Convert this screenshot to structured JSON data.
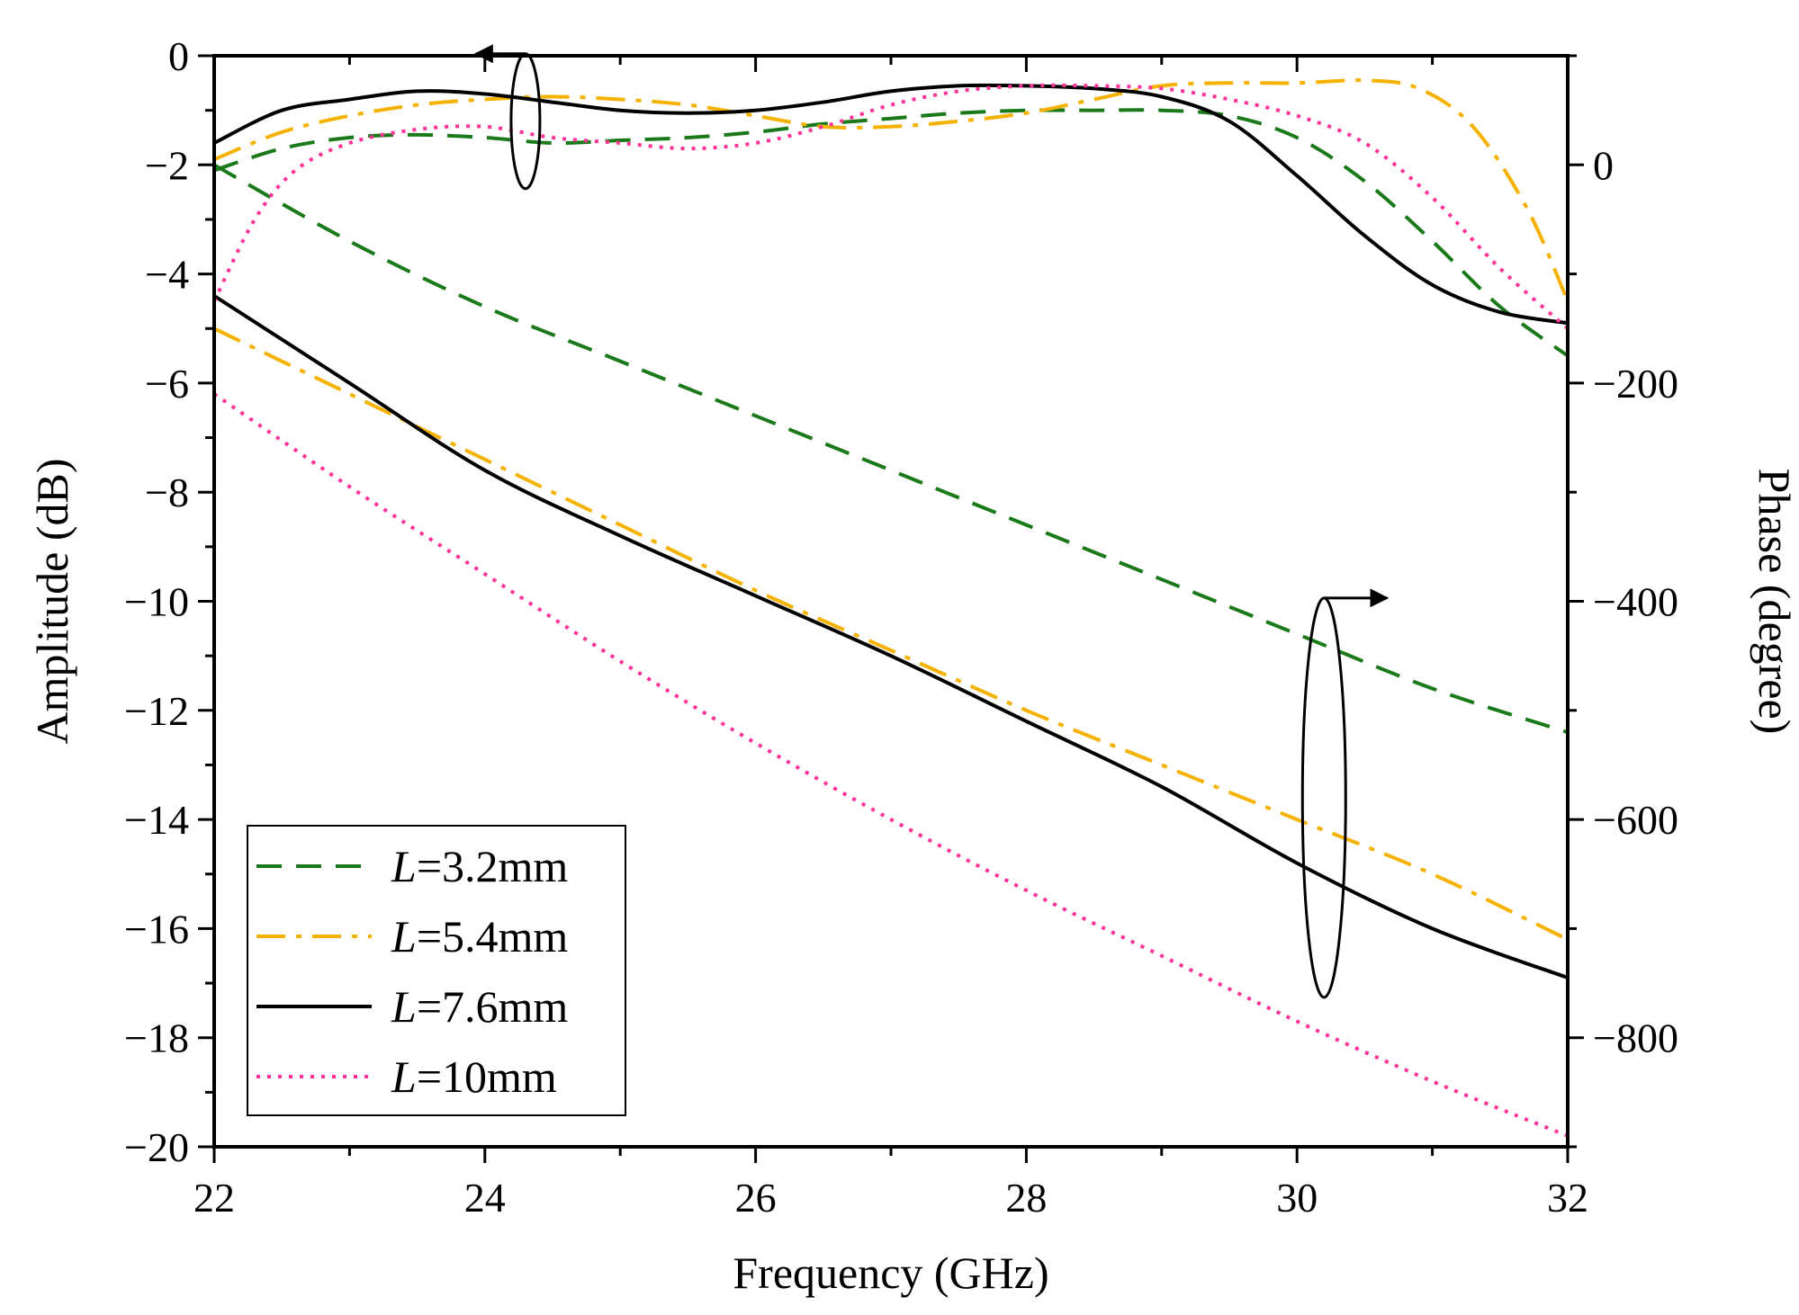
{
  "chart_data": {
    "type": "line",
    "title": "",
    "xlabel": "Frequency (GHz)",
    "ylabel_left": "Amplitude (dB)",
    "ylabel_right": "Phase (degree)",
    "xlim": [
      22,
      32
    ],
    "ylim_left": [
      -20,
      0
    ],
    "ylim_right": [
      -900,
      100
    ],
    "x_ticks": [
      "22",
      "24",
      "26",
      "28",
      "30",
      "32"
    ],
    "y_left_ticks": [
      "0",
      "−2",
      "−4",
      "−6",
      "−8",
      "−10",
      "−12",
      "−14",
      "−16",
      "−18",
      "−20"
    ],
    "y_right_ticks": [
      "0",
      "−200",
      "−400",
      "−600",
      "−800"
    ],
    "legend_placement": "bottom-left",
    "series": [
      {
        "name": "L=3.2mm",
        "legend_var": "L",
        "legend_value": "=3.2mm",
        "color": "#1a7a1a",
        "dash": "dashed",
        "amplitude": {
          "x": [
            22,
            22.5,
            23,
            23.5,
            24,
            24.5,
            25,
            25.5,
            26,
            26.5,
            27,
            27.5,
            28,
            28.5,
            29,
            29.5,
            30,
            30.5,
            31,
            31.5,
            32
          ],
          "y": [
            -2.1,
            -1.7,
            -1.5,
            -1.45,
            -1.5,
            -1.6,
            -1.55,
            -1.5,
            -1.4,
            -1.25,
            -1.15,
            -1.05,
            -1.0,
            -1.0,
            -1.0,
            -1.1,
            -1.5,
            -2.3,
            -3.4,
            -4.6,
            -5.5
          ]
        },
        "phase": {
          "x": [
            22,
            23,
            24,
            25,
            26,
            27,
            28,
            29,
            30,
            31,
            32
          ],
          "y": [
            0,
            -70,
            -130,
            -180,
            -230,
            -280,
            -330,
            -380,
            -430,
            -480,
            -520
          ]
        }
      },
      {
        "name": "L=5.4mm",
        "legend_var": "L",
        "legend_value": "=5.4mm",
        "color": "#f5b200",
        "dash": "dashdot",
        "amplitude": {
          "x": [
            22,
            22.5,
            23,
            23.5,
            24,
            24.5,
            25,
            25.5,
            26,
            26.5,
            27,
            27.5,
            28,
            28.5,
            29,
            29.5,
            30,
            30.5,
            30.9,
            31.3,
            31.7,
            32
          ],
          "y": [
            -1.9,
            -1.4,
            -1.1,
            -0.9,
            -0.8,
            -0.75,
            -0.8,
            -0.9,
            -1.1,
            -1.3,
            -1.3,
            -1.2,
            -1.05,
            -0.8,
            -0.55,
            -0.5,
            -0.5,
            -0.45,
            -0.6,
            -1.3,
            -2.8,
            -4.5
          ]
        },
        "phase": {
          "x": [
            22,
            23,
            24,
            25,
            26,
            27,
            28,
            29,
            30,
            31,
            32
          ],
          "y": [
            -150,
            -210,
            -270,
            -330,
            -390,
            -445,
            -500,
            -550,
            -600,
            -650,
            -710
          ]
        }
      },
      {
        "name": "L=7.6mm",
        "legend_var": "L",
        "legend_value": "=7.6mm",
        "color": "#000000",
        "dash": "solid",
        "amplitude": {
          "x": [
            22,
            22.5,
            23,
            23.5,
            24,
            24.5,
            25,
            25.5,
            26,
            26.5,
            27,
            27.5,
            28,
            28.5,
            29,
            29.5,
            30,
            30.5,
            31,
            31.5,
            32
          ],
          "y": [
            -1.6,
            -1.0,
            -0.8,
            -0.65,
            -0.7,
            -0.85,
            -1.0,
            -1.05,
            -1.0,
            -0.85,
            -0.65,
            -0.55,
            -0.55,
            -0.6,
            -0.75,
            -1.2,
            -2.2,
            -3.3,
            -4.2,
            -4.7,
            -4.9
          ]
        },
        "phase": {
          "x": [
            22,
            23,
            24,
            25,
            26,
            27,
            28,
            29,
            30,
            31,
            32
          ],
          "y": [
            -120,
            -200,
            -280,
            -340,
            -395,
            -450,
            -510,
            -570,
            -640,
            -700,
            -745
          ]
        }
      },
      {
        "name": "L=10mm",
        "legend_var": "L",
        "legend_value": "=10mm",
        "color": "#ff3399",
        "dash": "dotted",
        "amplitude": {
          "x": [
            22,
            22.3,
            22.6,
            23,
            23.5,
            24,
            24.5,
            25,
            25.5,
            26,
            26.5,
            27,
            27.5,
            28,
            28.5,
            29,
            29.5,
            30,
            30.5,
            31,
            31.5,
            32
          ],
          "y": [
            -4.5,
            -3.0,
            -2.1,
            -1.6,
            -1.35,
            -1.3,
            -1.5,
            -1.6,
            -1.7,
            -1.6,
            -1.3,
            -0.9,
            -0.65,
            -0.55,
            -0.55,
            -0.6,
            -0.8,
            -1.1,
            -1.6,
            -2.6,
            -3.9,
            -5.0
          ]
        },
        "phase": {
          "x": [
            22,
            23,
            24,
            25,
            26,
            27,
            28,
            29,
            30,
            31,
            32
          ],
          "y": [
            -210,
            -295,
            -375,
            -455,
            -530,
            -600,
            -665,
            -725,
            -785,
            -840,
            -890
          ]
        }
      }
    ]
  }
}
